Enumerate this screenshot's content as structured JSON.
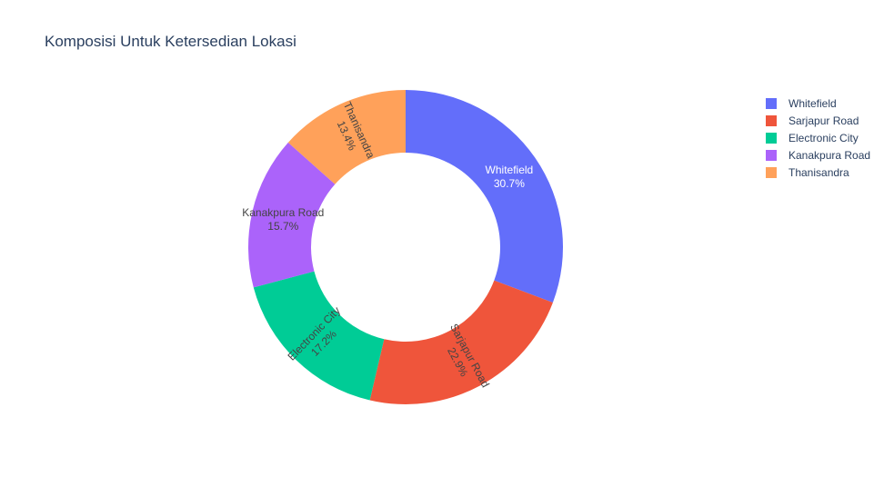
{
  "chart_data": {
    "type": "pie",
    "hole": true,
    "title": "Komposisi Untuk Ketersedian Lokasi",
    "legend_position": "top-right",
    "slices": [
      {
        "label": "Whitefield",
        "value": 30.7,
        "percent_text": "30.7%",
        "color": "#636efa",
        "text_color": "#ffffff"
      },
      {
        "label": "Sarjapur  Road",
        "value": 22.9,
        "percent_text": "22.9%",
        "color": "#ef553b",
        "text_color": "#444444"
      },
      {
        "label": "Electronic City",
        "value": 17.2,
        "percent_text": "17.2%",
        "color": "#00cc96",
        "text_color": "#444444"
      },
      {
        "label": "Kanakpura Road",
        "value": 15.7,
        "percent_text": "15.7%",
        "color": "#ab63fa",
        "text_color": "#444444"
      },
      {
        "label": "Thanisandra",
        "value": 13.4,
        "percent_text": "13.4%",
        "color": "#ffa15a",
        "text_color": "#444444"
      }
    ],
    "legend": [
      {
        "label": "Whitefield",
        "color": "#636efa"
      },
      {
        "label": "Sarjapur  Road",
        "color": "#ef553b"
      },
      {
        "label": "Electronic City",
        "color": "#00cc96"
      },
      {
        "label": "Kanakpura Road",
        "color": "#ab63fa"
      },
      {
        "label": "Thanisandra",
        "color": "#ffa15a"
      }
    ]
  }
}
